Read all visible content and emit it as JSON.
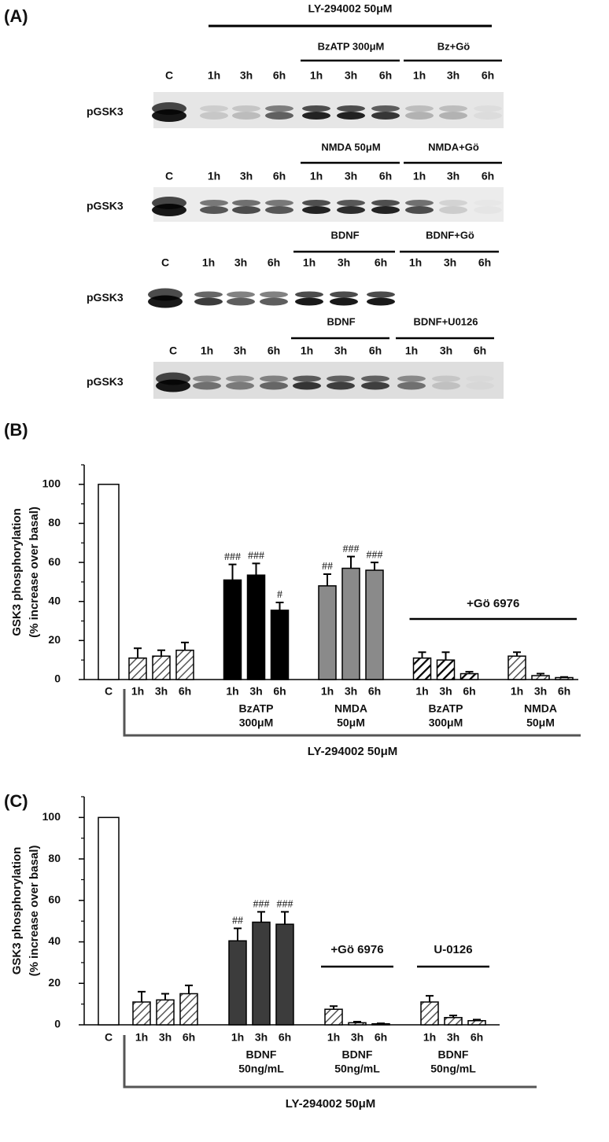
{
  "blot_panel": {
    "label": "(A)",
    "top_label": "LY-294002 50μM",
    "rows": [
      {
        "row_label": "pGSK3",
        "control": "C",
        "times": [
          "1h",
          "3h",
          "6h",
          "1h",
          "3h",
          "6h",
          "1h",
          "3h",
          "6h"
        ],
        "groups": [
          "BzATP 300μM",
          "Bz+Gö"
        ]
      },
      {
        "row_label": "pGSK3",
        "control": "C",
        "times": [
          "1h",
          "3h",
          "6h",
          "1h",
          "3h",
          "6h",
          "1h",
          "3h",
          "6h"
        ],
        "groups": [
          "NMDA 50μM",
          "NMDA+Gö"
        ]
      },
      {
        "row_label": "pGSK3",
        "control": "C",
        "times": [
          "1h",
          "3h",
          "6h",
          "1h",
          "3h",
          "6h",
          "1h",
          "3h",
          "6h"
        ],
        "groups": [
          "BDNF",
          "BDNF+Gö"
        ]
      },
      {
        "row_label": "pGSK3",
        "control": "C",
        "times": [
          "1h",
          "3h",
          "6h",
          "1h",
          "3h",
          "6h",
          "1h",
          "3h",
          "6h"
        ],
        "groups": [
          "BDNF",
          "BDNF+U0126"
        ]
      }
    ]
  },
  "chart_data": [
    {
      "type": "bar",
      "label": "(B)",
      "ylabel": [
        "GSK3 phosphorylation",
        "(% increase over basal)"
      ],
      "ylim": [
        0,
        110
      ],
      "yticks": [
        0,
        20,
        40,
        60,
        80,
        100
      ],
      "yticks_minor": [
        10,
        30,
        50,
        70,
        90,
        110
      ],
      "series": [
        {
          "categories": [
            "C"
          ],
          "values": [
            100
          ],
          "color": "#ffffff"
        },
        {
          "categories": [
            "1h",
            "3h",
            "6h"
          ],
          "values": [
            11,
            12,
            15
          ],
          "errors": [
            5,
            3,
            4
          ],
          "color": "#ffffff",
          "hatch": "light"
        },
        {
          "categories": [
            "1h",
            "3h",
            "6h"
          ],
          "values": [
            51,
            53.5,
            35.5
          ],
          "errors": [
            8,
            6,
            4
          ],
          "color": "#000000",
          "annotations": [
            "###",
            "###",
            "#"
          ],
          "group_label": [
            "BzATP",
            "300μM"
          ]
        },
        {
          "categories": [
            "1h",
            "3h",
            "6h"
          ],
          "values": [
            48,
            57,
            56
          ],
          "errors": [
            6,
            6,
            4
          ],
          "color": "#8a8a8a",
          "annotations": [
            "##",
            "###",
            "###"
          ],
          "group_label": [
            "NMDA",
            "50μM"
          ]
        },
        {
          "categories": [
            "1h",
            "3h",
            "6h"
          ],
          "values": [
            11,
            10,
            3
          ],
          "errors": [
            3,
            4,
            1
          ],
          "color": "#ffffff",
          "hatch": "heavy",
          "group_label": [
            "BzATP",
            "300μM"
          ]
        },
        {
          "categories": [
            "1h",
            "3h",
            "6h"
          ],
          "values": [
            12,
            2,
            1
          ],
          "errors": [
            2,
            1,
            0.3
          ],
          "color": "#ffffff",
          "hatch": "light",
          "group_label": [
            "NMDA",
            "50μM"
          ]
        }
      ],
      "brackets": [
        {
          "label": "+Gö 6976",
          "series": [
            4,
            5
          ]
        }
      ],
      "base_label": "LY-294002 50μM"
    },
    {
      "type": "bar",
      "label": "(C)",
      "ylabel": [
        "GSK3 phosphorylation",
        "(% increase over basal)"
      ],
      "ylim": [
        0,
        110
      ],
      "yticks": [
        0,
        20,
        40,
        60,
        80,
        100
      ],
      "yticks_minor": [
        10,
        30,
        50,
        70,
        90,
        110
      ],
      "series": [
        {
          "categories": [
            "C"
          ],
          "values": [
            100
          ],
          "color": "#ffffff"
        },
        {
          "categories": [
            "1h",
            "3h",
            "6h"
          ],
          "values": [
            11,
            12,
            15
          ],
          "errors": [
            5,
            3,
            4
          ],
          "color": "#ffffff",
          "hatch": "light"
        },
        {
          "categories": [
            "1h",
            "3h",
            "6h"
          ],
          "values": [
            40.5,
            49.5,
            48.5
          ],
          "errors": [
            6,
            5,
            6
          ],
          "color": "#3c3c3c",
          "annotations": [
            "##",
            "###",
            "###"
          ],
          "group_label": [
            "BDNF",
            "50ng/mL"
          ]
        },
        {
          "categories": [
            "1h",
            "3h",
            "6h"
          ],
          "values": [
            7.5,
            1,
            0.5
          ],
          "errors": [
            1.5,
            0.5,
            0.2
          ],
          "color": "#ffffff",
          "hatch": "light",
          "group_label": [
            "BDNF",
            "50ng/mL"
          ]
        },
        {
          "categories": [
            "1h",
            "3h",
            "6h"
          ],
          "values": [
            11,
            3.5,
            2
          ],
          "errors": [
            3,
            1,
            0.5
          ],
          "color": "#ffffff",
          "hatch": "light",
          "group_label": [
            "BDNF",
            "50ng/mL"
          ]
        }
      ],
      "brackets": [
        {
          "label": "+Gö 6976",
          "series": [
            3,
            3
          ]
        },
        {
          "label": "U-0126",
          "series": [
            4,
            4
          ]
        }
      ],
      "base_label": "LY-294002 50μM"
    }
  ]
}
